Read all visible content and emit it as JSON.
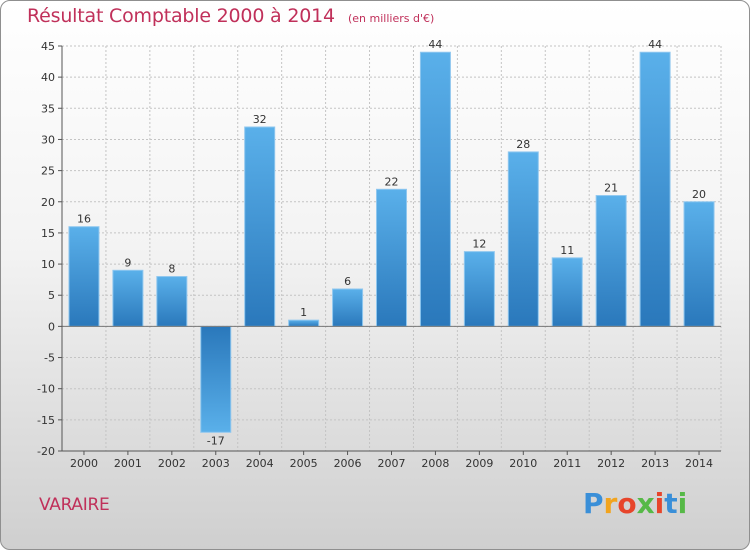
{
  "chart_data": {
    "type": "bar",
    "title": "Résultat Comptable 2000 à 2014",
    "subtitle": "(en milliers d'€)",
    "categories": [
      "2000",
      "2001",
      "2002",
      "2003",
      "2004",
      "2005",
      "2006",
      "2007",
      "2008",
      "2009",
      "2010",
      "2011",
      "2012",
      "2013",
      "2014"
    ],
    "values": [
      16,
      9,
      8,
      -17,
      32,
      1,
      6,
      22,
      44,
      12,
      28,
      11,
      21,
      44,
      20
    ],
    "value_labels": [
      "16",
      "9",
      "8",
      "-17",
      "32",
      "1",
      "6",
      "22",
      "44",
      "12",
      "28",
      "11",
      "21",
      "44",
      "20"
    ],
    "ylim": [
      -20,
      45
    ],
    "yticks": [
      45,
      40,
      35,
      30,
      25,
      20,
      15,
      10,
      5,
      0,
      -5,
      -10,
      -15,
      -20
    ],
    "ytick_labels": [
      "45",
      "40",
      "35",
      "30",
      "25",
      "20",
      "15",
      "10",
      "5",
      "0",
      "-5",
      "-10",
      "-15",
      "-20"
    ],
    "xlabel": "",
    "ylabel": "",
    "grid": true,
    "bar_color_light": "#5ab0ea",
    "bar_color_dark": "#2a78bb"
  },
  "commune": "VARAIRE",
  "brand": {
    "letters": [
      "P",
      "r",
      "o",
      "x",
      "i",
      "t",
      "i"
    ],
    "colors": [
      "#3a8fd8",
      "#f2a41e",
      "#e7452b",
      "#56b947",
      "#e7452b",
      "#3a8fd8",
      "#56b947"
    ]
  }
}
